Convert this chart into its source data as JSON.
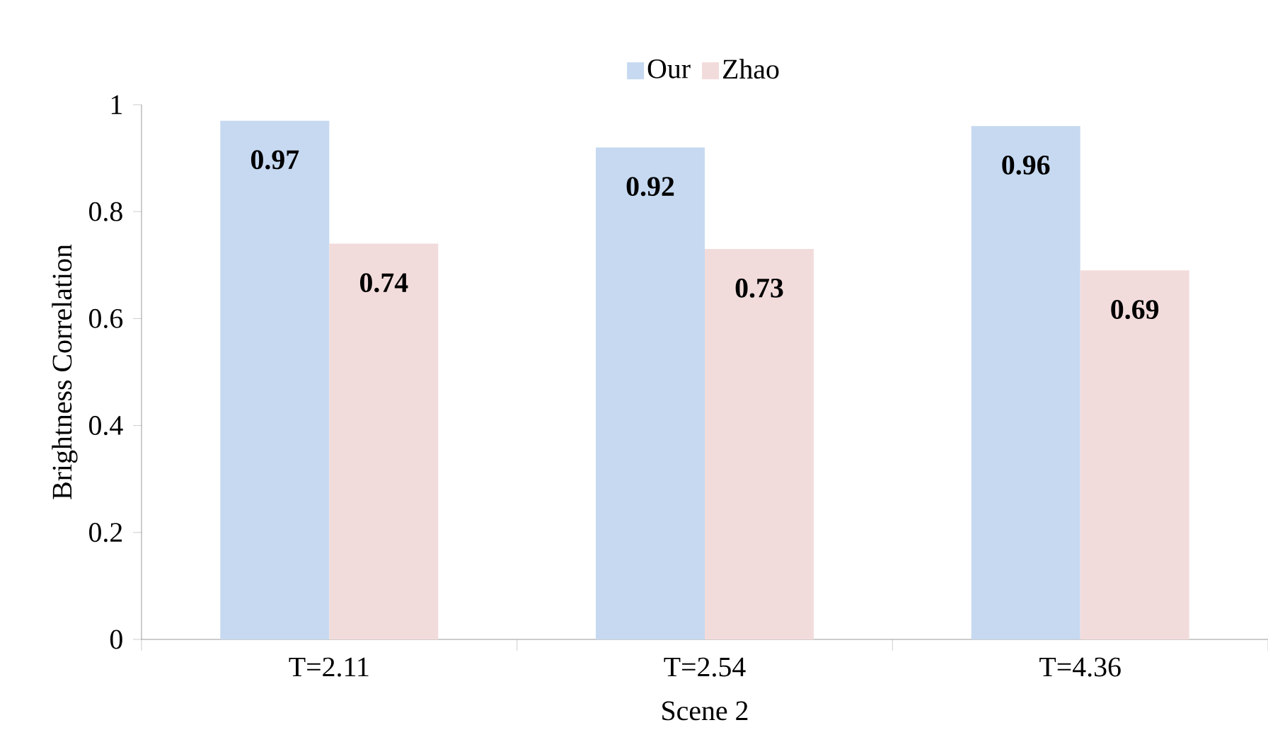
{
  "chart_data": {
    "type": "bar",
    "xlabel": "Scene 2",
    "ylabel": "Brightness Correlation",
    "categories": [
      "T=2.11",
      "T=2.54",
      "T=4.36"
    ],
    "series": [
      {
        "name": "Our",
        "color": "#c6d9f1",
        "values": [
          0.97,
          0.92,
          0.96
        ]
      },
      {
        "name": "Zhao",
        "color": "#f2dcdb",
        "values": [
          0.74,
          0.73,
          0.69
        ]
      }
    ],
    "ylim": [
      0,
      1
    ],
    "yticks": [
      0,
      0.2,
      0.4,
      0.6,
      0.8,
      1
    ],
    "data_labels": true,
    "legend": "top",
    "grid": false
  }
}
